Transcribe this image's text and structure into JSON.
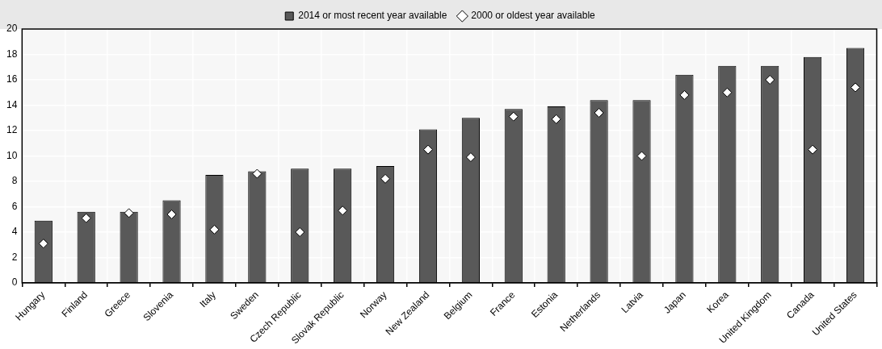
{
  "chart_data": {
    "type": "bar",
    "categories": [
      "Hungary",
      "Finland",
      "Greece",
      "Slovenia",
      "Italy",
      "Sweden",
      "Czech Republic",
      "Slovak Republic",
      "Norway",
      "New Zealand",
      "Belgium",
      "France",
      "Estonia",
      "Netherlands",
      "Latvia",
      "Japan",
      "Korea",
      "United Kingdom",
      "Canada",
      "United States"
    ],
    "series": [
      {
        "name": "2014 or most recent year available",
        "color": "#595959",
        "values": [
          4.9,
          5.6,
          5.6,
          6.5,
          8.5,
          8.8,
          9.0,
          9.0,
          9.2,
          12.1,
          13.0,
          13.7,
          13.9,
          14.4,
          14.4,
          16.4,
          17.1,
          17.1,
          17.8,
          18.5
        ]
      },
      {
        "name": "2000 or oldest year available",
        "type": "scatter",
        "color": "#ffffff",
        "marker": "diamond",
        "values": [
          3.1,
          5.1,
          5.5,
          5.4,
          4.2,
          8.6,
          4.0,
          5.7,
          8.2,
          10.5,
          9.9,
          13.1,
          12.9,
          13.4,
          10.0,
          14.8,
          15.0,
          16.0,
          10.5,
          15.4
        ]
      }
    ],
    "ylim": [
      0,
      20
    ],
    "yticks": [
      0,
      2,
      4,
      6,
      8,
      10,
      12,
      14,
      16,
      18,
      20
    ],
    "grid": true,
    "legend": "top"
  }
}
